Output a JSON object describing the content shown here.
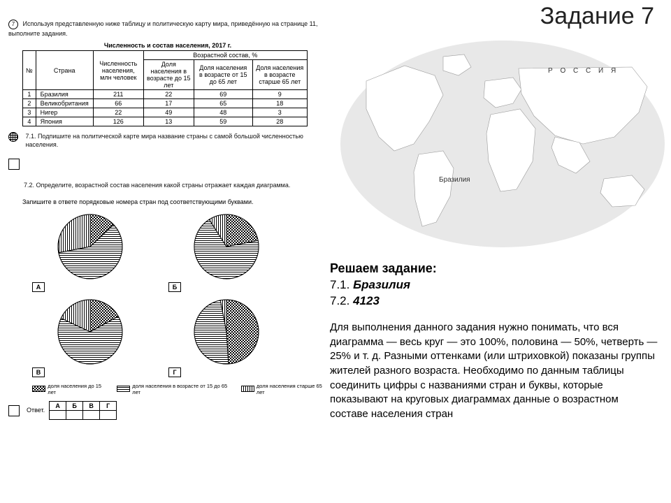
{
  "page_title": "Задание 7",
  "task_number": "7",
  "intro_text": "Используя представленную ниже таблицу и политическую карту мира, приведённую на странице 11, выполните задания.",
  "table": {
    "caption": "Численность и состав населения, 2017 г.",
    "head_no": "№",
    "head_country": "Страна",
    "head_pop": "Численность населения, млн человек",
    "head_age_group": "Возрастной состав, %",
    "head_u15": "Доля населения в возрасте до 15 лет",
    "head_15_65": "Доля населения в возрасте от 15 до 65 лет",
    "head_65p": "Доля населения в возрасте старше 65 лет",
    "rows": [
      {
        "n": "1",
        "country": "Бразилия",
        "pop": "211",
        "u15": "22",
        "mid": "69",
        "old": "9"
      },
      {
        "n": "2",
        "country": "Великобритания",
        "pop": "66",
        "u15": "17",
        "mid": "65",
        "old": "18"
      },
      {
        "n": "3",
        "country": "Нигер",
        "pop": "22",
        "u15": "49",
        "mid": "48",
        "old": "3"
      },
      {
        "n": "4",
        "country": "Япония",
        "pop": "126",
        "u15": "13",
        "mid": "59",
        "old": "28"
      }
    ]
  },
  "subtask_71": "7.1. Подпишите на политической карте мира название страны с самой большой численностью населения.",
  "subtask_72a": "7.2. Определите, возрастной состав населения какой страны отражает каждая диаграмма.",
  "subtask_72b": "Запишите в ответе порядковые номера стран под соответствующими буквами.",
  "pies": {
    "labels": [
      "А",
      "Б",
      "В",
      "Г"
    ],
    "data": [
      {
        "u15": 13,
        "mid": 59,
        "old": 28
      },
      {
        "u15": 22,
        "mid": 69,
        "old": 9
      },
      {
        "u15": 17,
        "mid": 65,
        "old": 18
      },
      {
        "u15": 49,
        "mid": 48,
        "old": 3
      }
    ],
    "legend": {
      "u15": "доля населения до 15 лет",
      "mid": "доля населения в возрасте от 15 до 65 лет",
      "old": "доля населения старше 65 лет"
    },
    "pattern_ids": {
      "u15": "patDots",
      "mid": "patHoriz",
      "old": "patVert"
    }
  },
  "answer_label": "Ответ.",
  "answer_headers": [
    "А",
    "Б",
    "В",
    "Г"
  ],
  "map": {
    "russia_label": "Р  О  С  С  И  Я",
    "brazil_label": "Бразилия",
    "ocean_color": "#e8e8e8",
    "land_fill": "#ffffff",
    "land_stroke": "#9a9a9a"
  },
  "solution": {
    "heading": "Решаем задание:",
    "line1_prefix": "7.1. ",
    "line1_answer": "Бразилия",
    "line2_prefix": "7.2. ",
    "line2_answer": "4123",
    "explanation": "Для выполнения данного задания нужно понимать, что вся диаграмма — весь круг — это 100%, половина — 50%, четверть — 25% и т. д. Разными оттенками (или штриховкой) показаны группы жителей разного возраста. Необходимо по данным таблицы соединить цифры с названиями стран и буквы, которые показывают на круговых диаграммах данные о возрастном составе населения стран"
  },
  "colors": {
    "text": "#000000",
    "title": "#222222",
    "border": "#000000"
  }
}
